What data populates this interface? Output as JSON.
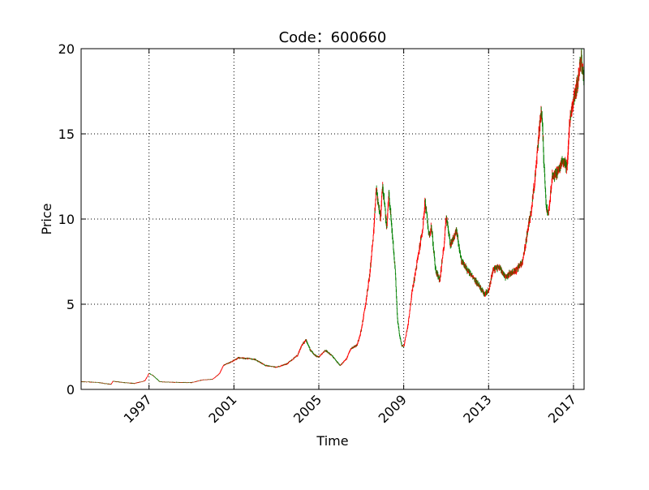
{
  "chart_data": {
    "type": "candlestick",
    "title": "Code：600660",
    "xlabel": "Time",
    "ylabel": "Price",
    "xlim": [
      1993.8,
      2017.5
    ],
    "ylim": [
      0,
      20
    ],
    "x_ticks": [
      1997,
      2001,
      2005,
      2009,
      2013,
      2017
    ],
    "x_tick_labels": [
      "1997",
      "2001",
      "2005",
      "2009",
      "2013",
      "2017"
    ],
    "y_ticks": [
      0,
      5,
      10,
      15,
      20
    ],
    "y_tick_labels": [
      "0",
      "5",
      "10",
      "15",
      "20"
    ],
    "grid": true,
    "grid_style": "dotted",
    "colors": {
      "up": "#ff0000",
      "down": "#008000",
      "axis": "#000000",
      "grid": "#000000"
    },
    "price_path": [
      [
        1993.8,
        0.45
      ],
      [
        1994.5,
        0.42
      ],
      [
        1995.0,
        0.33
      ],
      [
        1995.2,
        0.3
      ],
      [
        1995.3,
        0.48
      ],
      [
        1995.8,
        0.4
      ],
      [
        1996.3,
        0.35
      ],
      [
        1996.8,
        0.5
      ],
      [
        1997.0,
        0.95
      ],
      [
        1997.2,
        0.8
      ],
      [
        1997.5,
        0.45
      ],
      [
        1998.0,
        0.42
      ],
      [
        1999.0,
        0.4
      ],
      [
        1999.5,
        0.55
      ],
      [
        2000.0,
        0.6
      ],
      [
        2000.3,
        0.9
      ],
      [
        2000.5,
        1.4
      ],
      [
        2001.0,
        1.7
      ],
      [
        2001.2,
        1.85
      ],
      [
        2001.8,
        1.8
      ],
      [
        2002.0,
        1.75
      ],
      [
        2002.5,
        1.4
      ],
      [
        2003.0,
        1.3
      ],
      [
        2003.5,
        1.5
      ],
      [
        2003.8,
        1.8
      ],
      [
        2004.0,
        2.0
      ],
      [
        2004.2,
        2.6
      ],
      [
        2004.4,
        2.9
      ],
      [
        2004.6,
        2.3
      ],
      [
        2004.8,
        2.0
      ],
      [
        2005.0,
        1.9
      ],
      [
        2005.3,
        2.3
      ],
      [
        2005.6,
        2.0
      ],
      [
        2006.0,
        1.4
      ],
      [
        2006.3,
        1.8
      ],
      [
        2006.5,
        2.4
      ],
      [
        2006.8,
        2.6
      ],
      [
        2007.0,
        3.5
      ],
      [
        2007.2,
        5.0
      ],
      [
        2007.4,
        6.8
      ],
      [
        2007.6,
        9.5
      ],
      [
        2007.7,
        11.8
      ],
      [
        2007.9,
        10.0
      ],
      [
        2008.0,
        12.0
      ],
      [
        2008.2,
        9.5
      ],
      [
        2008.3,
        11.5
      ],
      [
        2008.5,
        8.5
      ],
      [
        2008.6,
        7.0
      ],
      [
        2008.7,
        4.2
      ],
      [
        2008.8,
        3.2
      ],
      [
        2008.9,
        2.6
      ],
      [
        2009.0,
        2.5
      ],
      [
        2009.2,
        3.8
      ],
      [
        2009.4,
        5.8
      ],
      [
        2009.5,
        6.5
      ],
      [
        2009.7,
        8.0
      ],
      [
        2009.9,
        9.5
      ],
      [
        2010.0,
        11.0
      ],
      [
        2010.2,
        9.0
      ],
      [
        2010.3,
        9.6
      ],
      [
        2010.5,
        7.0
      ],
      [
        2010.7,
        6.4
      ],
      [
        2010.9,
        8.5
      ],
      [
        2011.0,
        10.2
      ],
      [
        2011.2,
        8.5
      ],
      [
        2011.5,
        9.3
      ],
      [
        2011.7,
        7.6
      ],
      [
        2012.0,
        7.0
      ],
      [
        2012.3,
        6.5
      ],
      [
        2012.5,
        6.2
      ],
      [
        2012.8,
        5.6
      ],
      [
        2013.0,
        5.8
      ],
      [
        2013.2,
        7.0
      ],
      [
        2013.5,
        7.2
      ],
      [
        2013.8,
        6.6
      ],
      [
        2014.0,
        6.8
      ],
      [
        2014.3,
        7.0
      ],
      [
        2014.6,
        7.5
      ],
      [
        2014.8,
        9.0
      ],
      [
        2015.0,
        10.5
      ],
      [
        2015.2,
        12.5
      ],
      [
        2015.4,
        15.5
      ],
      [
        2015.5,
        16.5
      ],
      [
        2015.6,
        13.5
      ],
      [
        2015.7,
        11.0
      ],
      [
        2015.8,
        10.2
      ],
      [
        2016.0,
        12.5
      ],
      [
        2016.3,
        12.8
      ],
      [
        2016.5,
        13.5
      ],
      [
        2016.7,
        13.0
      ],
      [
        2016.8,
        15.5
      ],
      [
        2017.0,
        17.0
      ],
      [
        2017.2,
        18.0
      ],
      [
        2017.35,
        19.5
      ],
      [
        2017.5,
        18.2
      ]
    ]
  }
}
